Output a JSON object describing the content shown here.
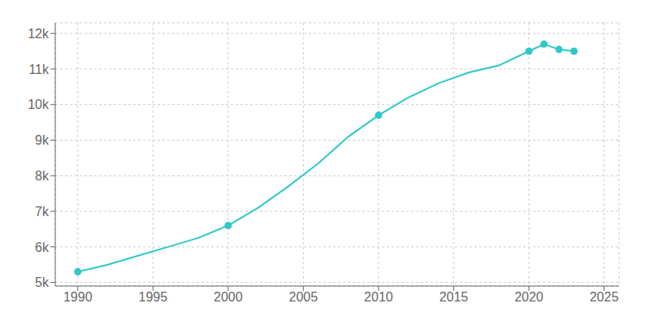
{
  "chart_data": {
    "type": "line",
    "series": [
      {
        "type": "line",
        "color": "#2ec8c8",
        "marker": "none",
        "x": [
          1990,
          1992,
          1994,
          1996,
          1998,
          2000,
          2002,
          2004,
          2006,
          2008,
          2010,
          2012,
          2014,
          2016,
          2018,
          2020,
          2021,
          2022,
          2023
        ],
        "values": [
          5300,
          5500,
          5750,
          6000,
          6250,
          6600,
          7100,
          7700,
          8350,
          9100,
          9700,
          10200,
          10600,
          10900,
          11100,
          11500,
          11700,
          11550,
          11500
        ]
      },
      {
        "type": "scatter",
        "color": "#2ec8c8",
        "marker": "circle",
        "x": [
          1990,
          2000,
          2010,
          2020,
          2021,
          2022,
          2023
        ],
        "values": [
          5300,
          6600,
          9700,
          11500,
          11700,
          11550,
          11500
        ]
      }
    ],
    "xlim": [
      1988.5,
      2026
    ],
    "xticks": [
      1990,
      1995,
      2000,
      2005,
      2010,
      2015,
      2020,
      2025
    ],
    "ylim": [
      4900,
      12300
    ],
    "yticks": [
      {
        "value": 5000,
        "label": "5k"
      },
      {
        "value": 6000,
        "label": "6k"
      },
      {
        "value": 7000,
        "label": "7k"
      },
      {
        "value": 8000,
        "label": "8k"
      },
      {
        "value": 9000,
        "label": "9k"
      },
      {
        "value": 10000,
        "label": "10k"
      },
      {
        "value": 11000,
        "label": "11k"
      },
      {
        "value": 12000,
        "label": "12k"
      }
    ],
    "grid": true
  }
}
